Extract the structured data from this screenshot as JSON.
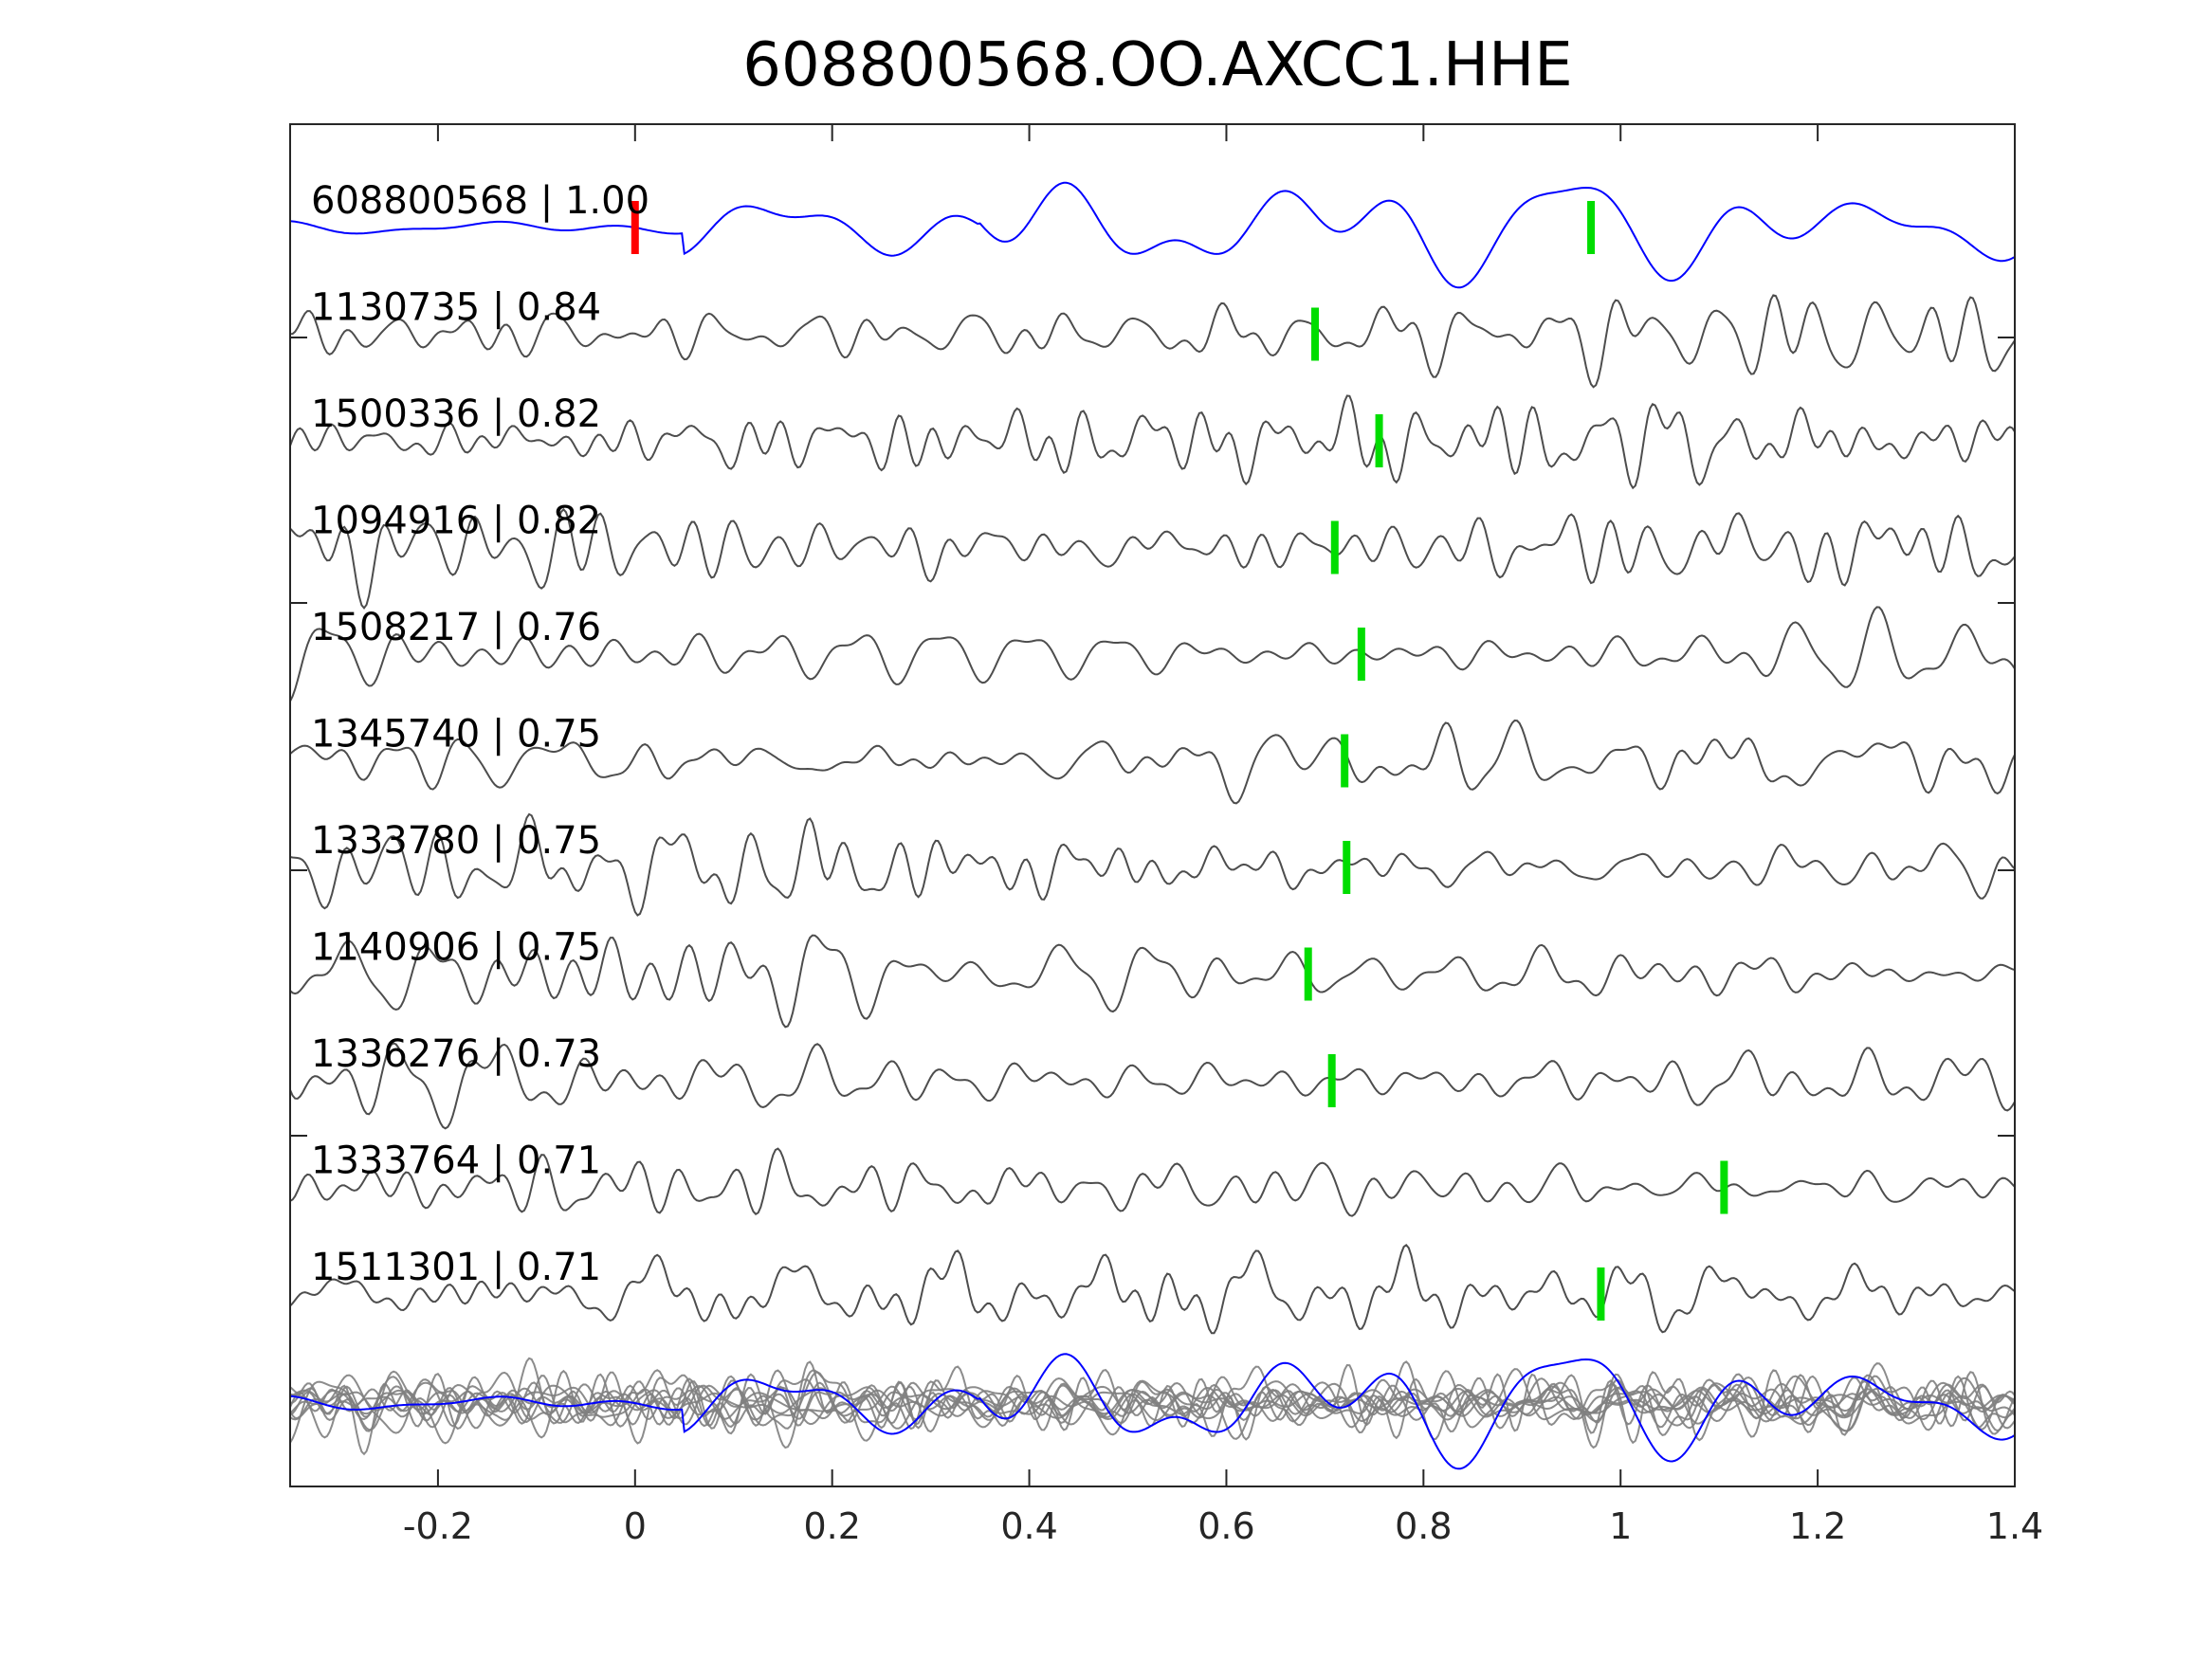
{
  "chart_data": {
    "type": "line",
    "title": "608800568.OO.AXCC1.HHE",
    "xlabel": "",
    "ylabel": "",
    "xlim": [
      -0.35,
      1.4
    ],
    "xticks": [
      -0.2,
      0,
      0.2,
      0.4,
      0.6,
      0.8,
      1,
      1.2,
      1.4
    ],
    "xtick_labels": [
      "-0.2",
      "0",
      "0.2",
      "0.4",
      "0.6",
      "0.8",
      "1",
      "1.2",
      "1.4"
    ],
    "grid": false,
    "legend": "none",
    "colors": {
      "template": "#0000ff",
      "trace": "#4d4d4d",
      "stack": "#808080",
      "origin_pick": "#ff0000",
      "phase_pick": "#00dd00",
      "axes": "#262626"
    },
    "origin_pick_time": 0.0,
    "traces": [
      {
        "label": "608800568 | 1.00",
        "id": "608800568",
        "cc": 1.0,
        "pick": 0.97,
        "template": true,
        "seed": 11
      },
      {
        "label": "1130735 | 0.84",
        "id": "1130735",
        "cc": 0.84,
        "pick": 0.69,
        "seed": 23
      },
      {
        "label": "1500336 | 0.82",
        "id": "1500336",
        "cc": 0.82,
        "pick": 0.755,
        "seed": 37
      },
      {
        "label": "1094916 | 0.82",
        "id": "1094916",
        "cc": 0.82,
        "pick": 0.71,
        "seed": 41
      },
      {
        "label": "1508217 | 0.76",
        "id": "1508217",
        "cc": 0.76,
        "pick": 0.737,
        "seed": 53
      },
      {
        "label": "1345740 | 0.75",
        "id": "1345740",
        "cc": 0.75,
        "pick": 0.72,
        "seed": 67
      },
      {
        "label": "1333780 | 0.75",
        "id": "1333780",
        "cc": 0.75,
        "pick": 0.722,
        "seed": 71
      },
      {
        "label": "1140906 | 0.75",
        "id": "1140906",
        "cc": 0.75,
        "pick": 0.683,
        "seed": 83
      },
      {
        "label": "1336276 | 0.73",
        "id": "1336276",
        "cc": 0.73,
        "pick": 0.707,
        "seed": 97
      },
      {
        "label": "1333764 | 0.71",
        "id": "1333764",
        "cc": 0.71,
        "pick": 1.105,
        "seed": 101
      },
      {
        "label": "1511301 | 0.71",
        "id": "1511301",
        "cc": 0.71,
        "pick": 0.98,
        "seed": 113
      }
    ]
  }
}
